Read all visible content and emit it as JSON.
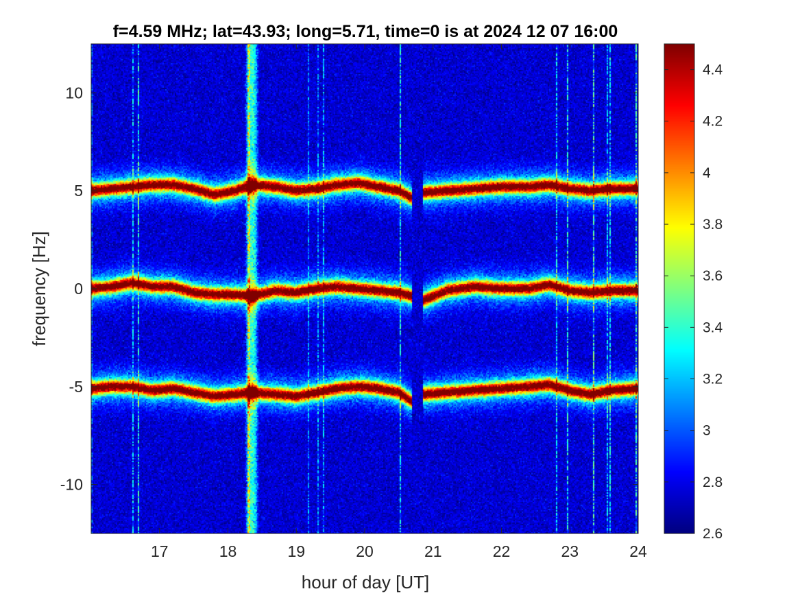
{
  "chart_data": {
    "type": "heatmap",
    "title": "f=4.59 MHz;  lat=43.93; long=5.71, time=0 is at 2024 12 07 16:00",
    "xlabel": "hour of day [UT]",
    "ylabel": "frequency [Hz]",
    "xlim": [
      16,
      24
    ],
    "ylim": [
      -12.5,
      12.5
    ],
    "x_ticks": [
      17,
      18,
      19,
      20,
      21,
      22,
      23,
      24
    ],
    "x_tick_labels": [
      "17",
      "18",
      "19",
      "20",
      "21",
      "22",
      "23",
      "24"
    ],
    "y_ticks": [
      10,
      5,
      0,
      -5,
      -10
    ],
    "y_tick_labels": [
      "10",
      "5",
      "0",
      "-5",
      "-10"
    ],
    "colorbar": {
      "colormap": "jet",
      "range": [
        2.6,
        4.5
      ],
      "ticks": [
        4.4,
        4.2,
        4,
        3.8,
        3.6,
        3.4,
        3.2,
        3,
        2.8,
        2.6
      ],
      "tick_labels": [
        "4.4",
        "4.2",
        "4",
        "3.8",
        "3.6",
        "3.4",
        "3.2",
        "3",
        "2.8",
        "2.6"
      ]
    },
    "background_level": 2.75,
    "traces": [
      {
        "center_hz": 5,
        "points": [
          [
            16.0,
            5.0
          ],
          [
            16.3,
            5.1
          ],
          [
            16.6,
            5.2
          ],
          [
            16.9,
            5.3
          ],
          [
            17.2,
            5.3
          ],
          [
            17.5,
            5.1
          ],
          [
            17.8,
            4.8
          ],
          [
            18.1,
            5.0
          ],
          [
            18.35,
            5.3
          ],
          [
            18.7,
            5.2
          ],
          [
            19.0,
            5.0
          ],
          [
            19.3,
            5.1
          ],
          [
            19.6,
            5.3
          ],
          [
            19.9,
            5.4
          ],
          [
            20.2,
            5.2
          ],
          [
            20.5,
            5.0
          ],
          [
            20.7,
            4.6
          ],
          [
            20.85,
            4.9
          ],
          [
            21.2,
            5.0
          ],
          [
            21.6,
            5.1
          ],
          [
            22.0,
            5.2
          ],
          [
            22.4,
            5.2
          ],
          [
            22.7,
            5.3
          ],
          [
            23.0,
            5.1
          ],
          [
            23.3,
            5.0
          ],
          [
            23.6,
            5.1
          ],
          [
            24.0,
            5.1
          ]
        ]
      },
      {
        "center_hz": 0,
        "points": [
          [
            16.0,
            0.0
          ],
          [
            16.3,
            0.1
          ],
          [
            16.6,
            0.3
          ],
          [
            16.9,
            0.1
          ],
          [
            17.2,
            0.1
          ],
          [
            17.5,
            -0.2
          ],
          [
            17.8,
            -0.3
          ],
          [
            18.1,
            -0.3
          ],
          [
            18.35,
            -0.4
          ],
          [
            18.7,
            -0.1
          ],
          [
            19.0,
            -0.2
          ],
          [
            19.3,
            0.0
          ],
          [
            19.6,
            0.1
          ],
          [
            19.9,
            0.0
          ],
          [
            20.2,
            -0.1
          ],
          [
            20.5,
            -0.2
          ],
          [
            20.7,
            -0.4
          ],
          [
            20.85,
            -0.6
          ],
          [
            21.2,
            -0.1
          ],
          [
            21.6,
            0.1
          ],
          [
            22.0,
            0.0
          ],
          [
            22.4,
            0.0
          ],
          [
            22.7,
            0.2
          ],
          [
            23.0,
            -0.1
          ],
          [
            23.3,
            -0.2
          ],
          [
            23.6,
            -0.1
          ],
          [
            24.0,
            -0.1
          ]
        ]
      },
      {
        "center_hz": -5,
        "points": [
          [
            16.0,
            -5.1
          ],
          [
            16.3,
            -5.0
          ],
          [
            16.6,
            -5.0
          ],
          [
            16.9,
            -5.2
          ],
          [
            17.2,
            -5.1
          ],
          [
            17.5,
            -5.3
          ],
          [
            17.8,
            -5.5
          ],
          [
            18.1,
            -5.4
          ],
          [
            18.35,
            -5.3
          ],
          [
            18.7,
            -5.4
          ],
          [
            19.0,
            -5.5
          ],
          [
            19.3,
            -5.3
          ],
          [
            19.6,
            -5.1
          ],
          [
            19.9,
            -5.0
          ],
          [
            20.2,
            -5.1
          ],
          [
            20.5,
            -5.3
          ],
          [
            20.7,
            -5.8
          ],
          [
            20.85,
            -5.4
          ],
          [
            21.2,
            -5.3
          ],
          [
            21.6,
            -5.2
          ],
          [
            22.0,
            -5.1
          ],
          [
            22.4,
            -5.0
          ],
          [
            22.7,
            -4.9
          ],
          [
            23.0,
            -5.2
          ],
          [
            23.3,
            -5.4
          ],
          [
            23.6,
            -5.2
          ],
          [
            24.0,
            -5.1
          ]
        ]
      }
    ],
    "broadband_band": {
      "x_from": 18.25,
      "x_to": 18.45,
      "level": 3.4
    },
    "trace_gap": {
      "x_from": 20.7,
      "x_to": 20.85
    }
  }
}
